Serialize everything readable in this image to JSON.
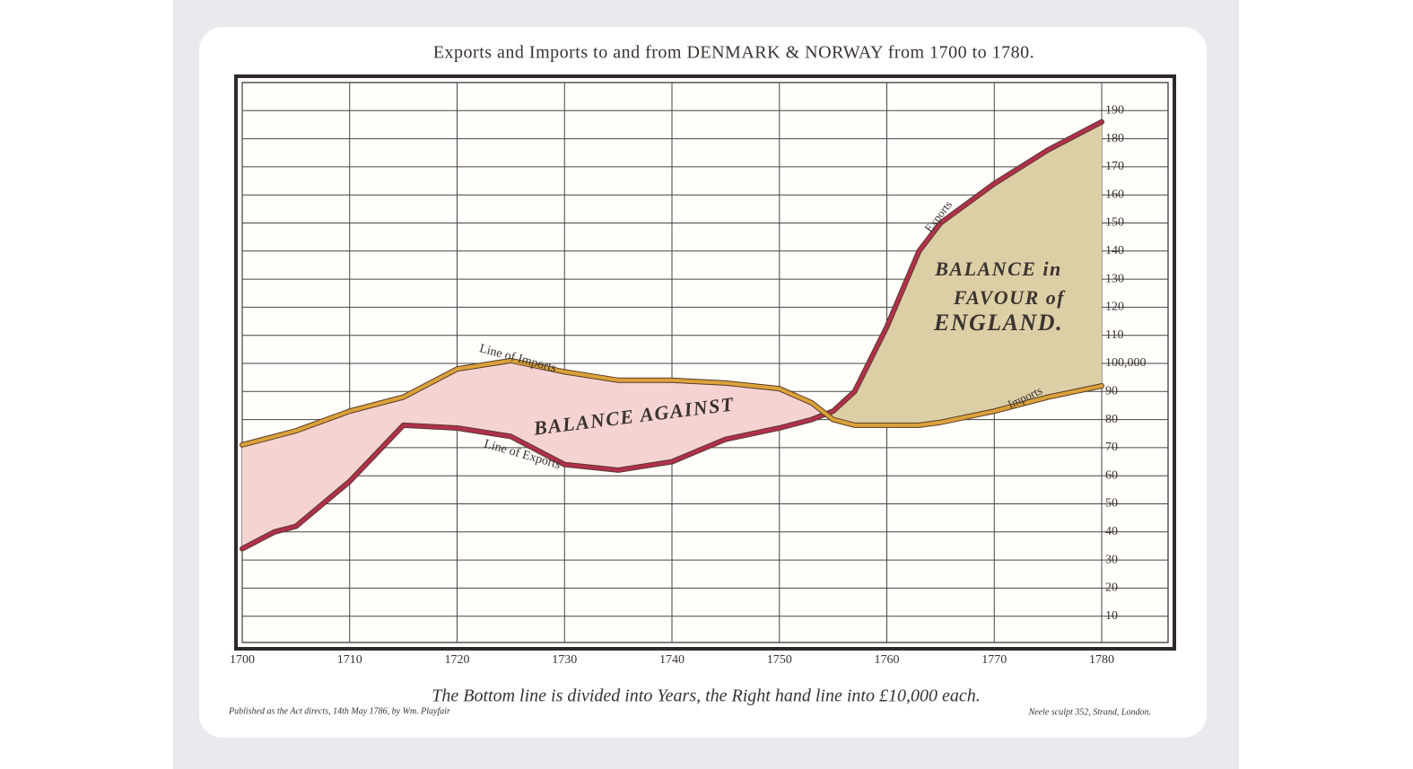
{
  "chart_data": {
    "type": "line",
    "title": "Exports and Imports to and from DENMARK & NORWAY from 1700 to 1780.",
    "x": [
      1700,
      1703,
      1705,
      1710,
      1715,
      1720,
      1725,
      1730,
      1735,
      1740,
      1745,
      1750,
      1753,
      1755,
      1757,
      1760,
      1763,
      1765,
      1770,
      1775,
      1780
    ],
    "series": [
      {
        "name": "Exports",
        "color": "#b0304c",
        "values": [
          34,
          40,
          42,
          58,
          78,
          77,
          74,
          64,
          62,
          65,
          73,
          77,
          80,
          83,
          90,
          113,
          140,
          150,
          164,
          176,
          186
        ]
      },
      {
        "name": "Imports",
        "color": "#dba23a",
        "values": [
          71,
          74,
          76,
          83,
          88,
          98,
          101,
          97,
          94,
          94,
          93,
          91,
          86,
          80,
          78,
          78,
          78,
          79,
          83,
          88,
          92
        ]
      }
    ],
    "balance_colors": {
      "against": "#f6d3d3",
      "favour": "#dccfa6"
    },
    "xlim": [
      1700,
      1780
    ],
    "ylim": [
      0,
      200
    ],
    "xticks": [
      1700,
      1710,
      1720,
      1730,
      1740,
      1750,
      1760,
      1770,
      1780
    ],
    "yticks": [
      10,
      20,
      30,
      40,
      50,
      60,
      70,
      80,
      90,
      {
        "value": 100,
        "label": "100,000"
      },
      110,
      120,
      130,
      140,
      150,
      160,
      170,
      180,
      190
    ],
    "grid": true,
    "annotations": [
      "Line of Imports",
      "Line of Exports",
      "BALANCE AGAINST",
      "BALANCE in",
      "FAVOUR of",
      "ENGLAND."
    ],
    "footer": "The Bottom line is divided into Years, the Right hand line into £10,000 each.",
    "publisher_note": "Published as the Act directs, 14th May 1786, by Wm. Playfair",
    "engraver_note": "Neele sculpt 352, Strand, London."
  }
}
